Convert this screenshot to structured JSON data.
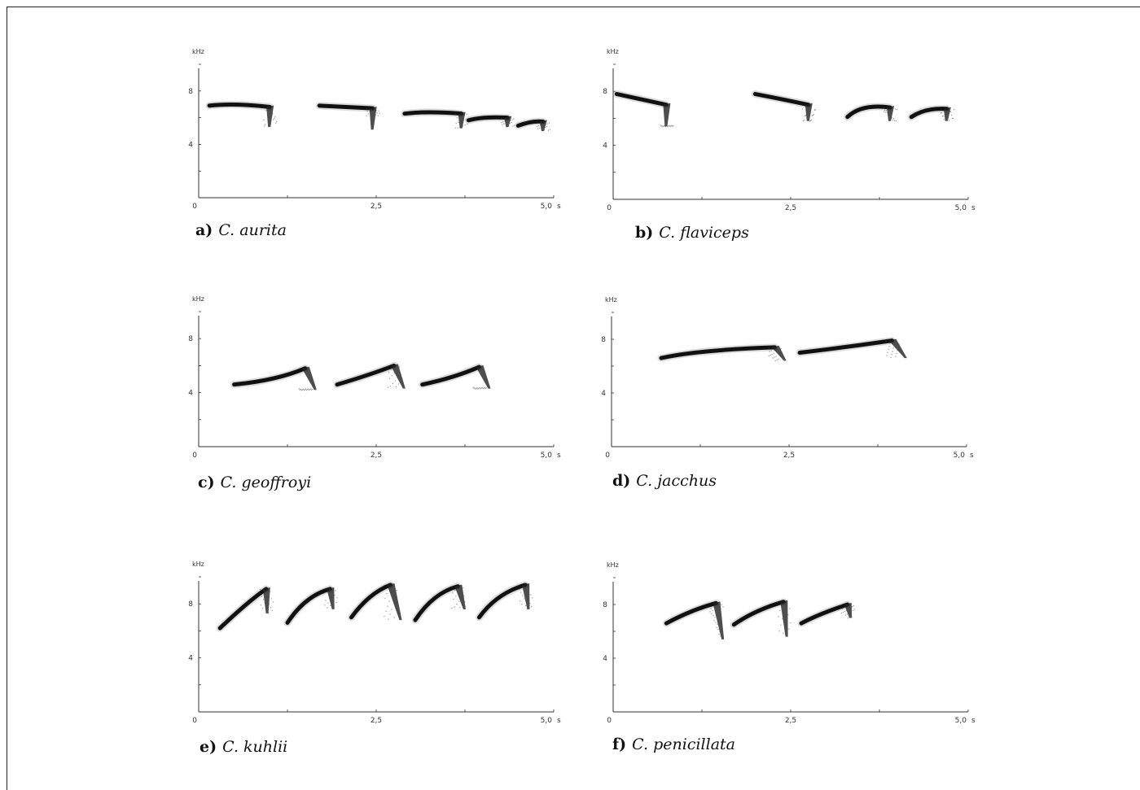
{
  "chart_data": [
    {
      "type": "spectrogram",
      "panel": "a)",
      "species": "C. aurita",
      "ylabel": "kHz",
      "xunit": "s",
      "xlim": [
        0,
        5.0
      ],
      "ylim": [
        0,
        10
      ],
      "xticks": [
        "0",
        "2,5",
        "5,0"
      ],
      "yticks": [
        "4",
        "8"
      ],
      "phrases": [
        {
          "points": [
            [
              0.15,
              6.9
            ],
            [
              0.5,
              7.1
            ],
            [
              1.0,
              6.8
            ]
          ],
          "tail": [
            1.0,
            5.3
          ]
        },
        {
          "points": [
            [
              1.7,
              6.9
            ],
            [
              2.1,
              6.8
            ],
            [
              2.45,
              6.7
            ]
          ],
          "tail": [
            2.45,
            5.1
          ]
        },
        {
          "points": [
            [
              2.9,
              6.3
            ],
            [
              3.2,
              6.5
            ],
            [
              3.7,
              6.3
            ]
          ],
          "tail": [
            3.7,
            5.2
          ]
        },
        {
          "points": [
            [
              3.8,
              5.8
            ],
            [
              4.0,
              6.1
            ],
            [
              4.35,
              6.0
            ]
          ],
          "tail": [
            4.35,
            5.3
          ]
        },
        {
          "points": [
            [
              4.5,
              5.4
            ],
            [
              4.7,
              5.8
            ],
            [
              4.85,
              5.7
            ]
          ],
          "tail": [
            4.85,
            5.0
          ]
        }
      ]
    },
    {
      "type": "spectrogram",
      "panel": "b)",
      "species": "C. flaviceps",
      "ylabel": "kHz",
      "xunit": "s",
      "xlim": [
        0,
        5.0
      ],
      "ylim": [
        0,
        10
      ],
      "xticks": [
        "0",
        "2,5",
        "5,0"
      ],
      "yticks": [
        "4",
        "8"
      ],
      "phrases": [
        {
          "points": [
            [
              0.05,
              7.8
            ],
            [
              0.4,
              7.4
            ],
            [
              0.75,
              7.0
            ]
          ],
          "tail": [
            0.75,
            5.4
          ]
        },
        {
          "points": [
            [
              2.0,
              7.8
            ],
            [
              2.4,
              7.4
            ],
            [
              2.75,
              7.0
            ]
          ],
          "tail": [
            2.75,
            5.8
          ]
        },
        {
          "points": [
            [
              3.3,
              6.1
            ],
            [
              3.5,
              7.1
            ],
            [
              3.9,
              6.8
            ]
          ],
          "tail": [
            3.9,
            5.8
          ]
        },
        {
          "points": [
            [
              4.2,
              6.1
            ],
            [
              4.4,
              6.8
            ],
            [
              4.7,
              6.7
            ]
          ],
          "tail": [
            4.7,
            5.8
          ]
        }
      ]
    },
    {
      "type": "spectrogram",
      "panel": "c)",
      "species": "C. geoffroyi",
      "ylabel": "kHz",
      "xunit": "s",
      "xlim": [
        0,
        5.0
      ],
      "ylim": [
        0,
        10
      ],
      "xticks": [
        "0",
        "2,5",
        "5,0"
      ],
      "yticks": [
        "4",
        "8"
      ],
      "phrases": [
        {
          "points": [
            [
              0.5,
              4.6
            ],
            [
              1.1,
              4.9
            ],
            [
              1.5,
              5.8
            ]
          ],
          "tail": [
            1.65,
            4.2
          ]
        },
        {
          "points": [
            [
              1.95,
              4.6
            ],
            [
              2.4,
              5.3
            ],
            [
              2.75,
              6.0
            ]
          ],
          "tail": [
            2.9,
            4.3
          ]
        },
        {
          "points": [
            [
              3.15,
              4.6
            ],
            [
              3.6,
              5.1
            ],
            [
              3.95,
              5.9
            ]
          ],
          "tail": [
            4.1,
            4.3
          ]
        }
      ]
    },
    {
      "type": "spectrogram",
      "panel": "d)",
      "species": "C. jacchus",
      "ylabel": "kHz",
      "xunit": "s",
      "xlim": [
        0,
        5.0
      ],
      "ylim": [
        0,
        10
      ],
      "xticks": [
        "0",
        "2,5",
        "5,0"
      ],
      "yticks": [
        "4",
        "8"
      ],
      "phrases": [
        {
          "points": [
            [
              0.7,
              6.6
            ],
            [
              1.2,
              7.2
            ],
            [
              2.3,
              7.4
            ]
          ],
          "tail": [
            2.45,
            6.4
          ]
        },
        {
          "points": [
            [
              2.65,
              7.0
            ],
            [
              3.3,
              7.4
            ],
            [
              3.95,
              7.9
            ]
          ],
          "tail": [
            4.15,
            6.6
          ]
        }
      ]
    },
    {
      "type": "spectrogram",
      "panel": "e)",
      "species": "C. kuhlii",
      "ylabel": "kHz",
      "xunit": "s",
      "xlim": [
        0,
        5.0
      ],
      "ylim": [
        0,
        10
      ],
      "xticks": [
        "0",
        "2,5",
        "5,0"
      ],
      "yticks": [
        "4",
        "8"
      ],
      "phrases": [
        {
          "points": [
            [
              0.3,
              6.2
            ],
            [
              0.7,
              8.2
            ],
            [
              0.95,
              9.1
            ]
          ],
          "tail": [
            0.97,
            7.3
          ]
        },
        {
          "points": [
            [
              1.25,
              6.6
            ],
            [
              1.5,
              8.6
            ],
            [
              1.85,
              9.1
            ]
          ],
          "tail": [
            1.9,
            7.6
          ]
        },
        {
          "points": [
            [
              2.15,
              7.0
            ],
            [
              2.4,
              8.8
            ],
            [
              2.7,
              9.4
            ]
          ],
          "tail": [
            2.85,
            6.8
          ]
        },
        {
          "points": [
            [
              3.05,
              6.8
            ],
            [
              3.3,
              8.8
            ],
            [
              3.65,
              9.3
            ]
          ],
          "tail": [
            3.75,
            7.6
          ]
        },
        {
          "points": [
            [
              3.95,
              7.0
            ],
            [
              4.2,
              8.8
            ],
            [
              4.6,
              9.4
            ]
          ],
          "tail": [
            4.65,
            7.6
          ]
        }
      ]
    },
    {
      "type": "spectrogram",
      "panel": "f)",
      "species": "C. penicillata",
      "ylabel": "kHz",
      "xunit": "s",
      "xlim": [
        0,
        5.0
      ],
      "ylim": [
        0,
        10
      ],
      "xticks": [
        "0",
        "2,5",
        "5,0"
      ],
      "yticks": [
        "4",
        "8"
      ],
      "phrases": [
        {
          "points": [
            [
              0.75,
              6.6
            ],
            [
              1.1,
              7.6
            ],
            [
              1.45,
              8.1
            ]
          ],
          "tail": [
            1.55,
            5.4
          ]
        },
        {
          "points": [
            [
              1.7,
              6.5
            ],
            [
              2.0,
              7.6
            ],
            [
              2.4,
              8.2
            ]
          ],
          "tail": [
            2.45,
            5.6
          ]
        },
        {
          "points": [
            [
              2.65,
              6.6
            ],
            [
              2.9,
              7.3
            ],
            [
              3.3,
              8.0
            ]
          ],
          "tail": [
            3.35,
            7.0
          ]
        }
      ]
    }
  ]
}
